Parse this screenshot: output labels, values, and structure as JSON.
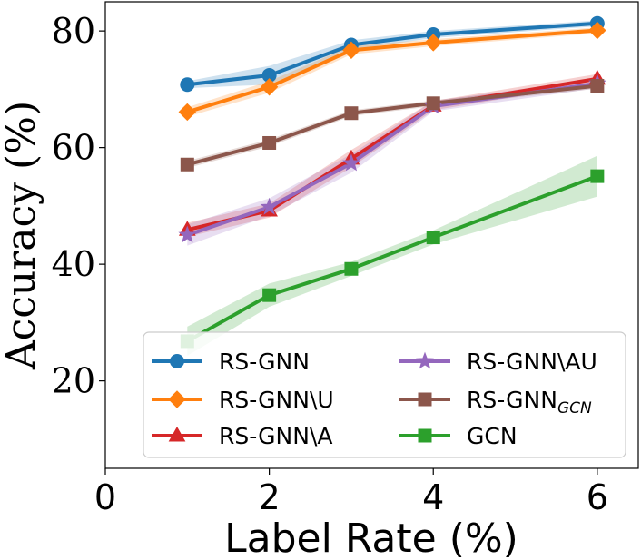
{
  "chart_data": {
    "type": "line",
    "xlabel": "Label Rate (%)",
    "ylabel": "Accuracy (%)",
    "xlim": [
      0,
      6.5
    ],
    "ylim": [
      5,
      85
    ],
    "xticks": [
      "0",
      "2",
      "4",
      "6"
    ],
    "yticks": [
      "20",
      "40",
      "60",
      "80"
    ],
    "legend_position": "lower-right",
    "legend_columns": 2,
    "grid": false,
    "series": [
      {
        "name": "RS-GNN",
        "color": "#1f77b4",
        "marker": "circle",
        "x": [
          1,
          2,
          3,
          4,
          6
        ],
        "values": [
          70.8,
          72.4,
          77.6,
          79.4,
          81.3
        ],
        "band": [
          0.6,
          1.6,
          0.8,
          0.6,
          0.5
        ]
      },
      {
        "name": "RS-GNN\\U",
        "color": "#ff7f0e",
        "marker": "diamond",
        "x": [
          1,
          2,
          3,
          4,
          6
        ],
        "values": [
          66.1,
          70.4,
          76.7,
          78.0,
          80.1
        ],
        "band": [
          0.8,
          1.0,
          0.7,
          0.6,
          0.5
        ]
      },
      {
        "name": "RS-GNN\\A",
        "color": "#d62728",
        "marker": "triangle",
        "x": [
          1,
          2,
          3,
          4,
          6
        ],
        "values": [
          45.9,
          49.2,
          58.1,
          67.2,
          71.8
        ],
        "band": [
          1.2,
          1.2,
          1.5,
          0.8,
          0.8
        ]
      },
      {
        "name": "RS-GNN\\AU",
        "color": "#9467bd",
        "marker": "star",
        "x": [
          1,
          2,
          3,
          4,
          6
        ],
        "values": [
          45.0,
          49.8,
          57.3,
          67.1,
          71.0
        ],
        "band": [
          1.8,
          1.5,
          1.6,
          0.9,
          0.8
        ]
      },
      {
        "name": "RS-GNNGCN",
        "name_main": "RS-GNN",
        "name_sub": "GCN",
        "color": "#8c564b",
        "marker": "square",
        "x": [
          1,
          2,
          3,
          4,
          6
        ],
        "values": [
          57.1,
          60.8,
          65.9,
          67.6,
          70.6
        ],
        "band": [
          0.6,
          0.6,
          0.5,
          0.5,
          0.5
        ]
      },
      {
        "name": "GCN",
        "color": "#2ca02c",
        "marker": "square",
        "x": [
          1,
          2,
          3,
          4,
          6
        ],
        "values": [
          26.8,
          34.7,
          39.2,
          44.6,
          55.1
        ],
        "band": [
          2.5,
          2.0,
          1.2,
          1.2,
          3.5
        ]
      }
    ]
  }
}
